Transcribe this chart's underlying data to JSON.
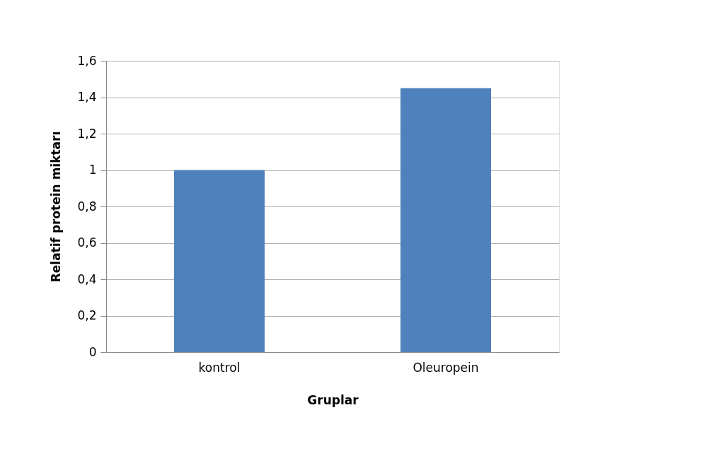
{
  "chart_data": {
    "type": "bar",
    "xlabel": "Gruplar",
    "ylabel": "Relatif protein miktarı",
    "categories": [
      "kontrol",
      "Oleuropein"
    ],
    "values": [
      1.0,
      1.45
    ],
    "color": "#4f81bd",
    "ylim": [
      0,
      1.6
    ],
    "yticks": [
      0,
      {
        "value": 0.2,
        "label": "0,2"
      },
      {
        "value": 0.4,
        "label": "0,4"
      },
      {
        "value": 0.6,
        "label": "0,6"
      },
      {
        "value": 0.8,
        "label": "0,8"
      },
      1,
      {
        "value": 1.2,
        "label": "1,2"
      },
      {
        "value": 1.4,
        "label": "1,4"
      },
      {
        "value": 1.6,
        "label": "1,6"
      }
    ],
    "grid": "y"
  }
}
